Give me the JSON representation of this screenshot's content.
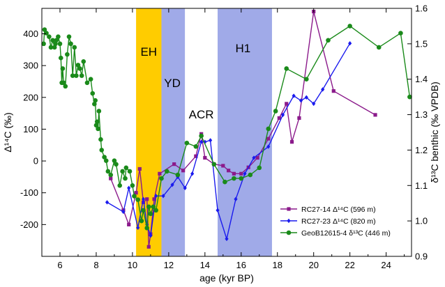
{
  "chart_data": {
    "type": "line",
    "xlabel": "age (kyr BP)",
    "ylabel_left": "Δ¹⁴C (‰)",
    "ylabel_right": "δ¹³C benthic (‰ VPDB)",
    "xlim": [
      5,
      25.4
    ],
    "ylim_left": [
      -300,
      480
    ],
    "ylim_right": [
      0.9,
      1.6
    ],
    "x_ticks": [
      6,
      8,
      10,
      12,
      14,
      16,
      18,
      20,
      22,
      24
    ],
    "y_left_ticks": [
      -200,
      -100,
      0,
      100,
      200,
      300,
      400
    ],
    "y_right_ticks": [
      0.9,
      1.0,
      1.1,
      1.2,
      1.3,
      1.4,
      1.5,
      1.6
    ],
    "bands": [
      {
        "name": "EH",
        "x0": 10.2,
        "x1": 11.6,
        "color": "#ffcc00"
      },
      {
        "name": "YD",
        "x0": 11.6,
        "x1": 12.9,
        "color": "#a0aae8"
      },
      {
        "name": "ACR",
        "x0": 12.9,
        "x1": 14.7,
        "color": "#ffffff"
      },
      {
        "name": "H1",
        "x0": 14.7,
        "x1": 17.7,
        "color": "#a0aae8"
      }
    ],
    "series": [
      {
        "name": "RC27-14 Δ¹⁴C (596 m)",
        "axis": "left",
        "color": "#8b1a8b",
        "marker": "square",
        "x": [
          8.8,
          9.5,
          9.8,
          10.2,
          10.4,
          10.6,
          10.8,
          10.9,
          11.0,
          11.2,
          11.5,
          12.3,
          12.8,
          13.5,
          13.8,
          14.0,
          14.5,
          15.0,
          15.3,
          15.6,
          16.0,
          16.4,
          16.9,
          17.5,
          18.1,
          18.5,
          18.8,
          19.2,
          20.0,
          21.1,
          23.4
        ],
        "y": [
          -55,
          -155,
          -200,
          -100,
          -25,
          -130,
          -120,
          -270,
          -230,
          -120,
          -40,
          -10,
          -30,
          15,
          85,
          10,
          -10,
          -15,
          -30,
          -40,
          -40,
          -20,
          10,
          70,
          135,
          180,
          60,
          135,
          470,
          220,
          145
        ]
      },
      {
        "name": "RC27-23 Δ¹⁴C (820 m)",
        "axis": "left",
        "color": "#1a1aee",
        "marker": "diamond",
        "x": [
          8.6,
          9.5,
          9.8,
          10.3,
          10.6,
          10.8,
          11.0,
          11.3,
          11.7,
          12.2,
          12.5,
          12.9,
          13.3,
          13.8,
          14.0,
          14.3,
          14.7,
          15.2,
          15.7,
          16.2,
          16.7,
          17.5,
          18.3,
          18.9,
          19.3,
          19.6,
          20.0,
          20.5,
          22.0
        ],
        "y": [
          -130,
          -160,
          -85,
          -210,
          -120,
          -200,
          -235,
          -110,
          -110,
          -75,
          -50,
          -85,
          -40,
          60,
          60,
          65,
          -155,
          -245,
          -120,
          -40,
          10,
          45,
          145,
          205,
          190,
          200,
          180,
          225,
          370
        ]
      },
      {
        "name": "GeoB12615-4 δ¹³C (446 m)",
        "axis": "right",
        "color": "#1a8a1a",
        "marker": "circle",
        "x": [
          5.1,
          5.15,
          5.25,
          5.4,
          5.5,
          5.6,
          5.7,
          5.75,
          5.8,
          5.9,
          6.0,
          6.05,
          6.1,
          6.15,
          6.2,
          6.3,
          6.4,
          6.5,
          6.6,
          6.7,
          6.8,
          6.9,
          7.0,
          7.1,
          7.2,
          7.3,
          7.5,
          7.7,
          7.8,
          7.9,
          7.95,
          8.0,
          8.05,
          8.1,
          8.15,
          8.25,
          8.3,
          8.45,
          8.55,
          8.65,
          8.8,
          9.0,
          9.1,
          9.3,
          9.45,
          9.6,
          9.65,
          9.85,
          10.0,
          10.1,
          10.3,
          10.5,
          10.6,
          10.8,
          10.9,
          11.0,
          11.15,
          11.3,
          11.6,
          11.9,
          12.5,
          13.0,
          13.5,
          13.8,
          14.5,
          15.1,
          15.6,
          16.0,
          16.5,
          17.0,
          17.5,
          17.9,
          18.5,
          19.6,
          20.8,
          22.0,
          23.6,
          24.8,
          25.3
        ],
        "y": [
          1.5,
          1.54,
          1.53,
          1.52,
          1.49,
          1.51,
          1.49,
          1.5,
          1.51,
          1.52,
          1.5,
          1.46,
          1.39,
          1.43,
          1.39,
          1.38,
          1.47,
          1.52,
          1.5,
          1.41,
          1.49,
          1.41,
          1.44,
          1.43,
          1.41,
          1.45,
          1.39,
          1.4,
          1.36,
          1.33,
          1.34,
          1.27,
          1.28,
          1.26,
          1.31,
          1.23,
          1.2,
          1.18,
          1.17,
          1.14,
          1.13,
          1.17,
          1.16,
          1.1,
          1.14,
          1.12,
          1.15,
          1.14,
          1.1,
          1.07,
          1.06,
          1.0,
          1.03,
          0.98,
          1.04,
          1.02,
          1.04,
          1.03,
          1.12,
          1.14,
          1.13,
          1.22,
          1.21,
          1.24,
          1.16,
          1.11,
          1.12,
          1.12,
          1.13,
          1.15,
          1.26,
          1.31,
          1.43,
          1.4,
          1.51,
          1.55,
          1.49,
          1.53,
          1.35
        ]
      }
    ],
    "legend": "bottom-right"
  }
}
